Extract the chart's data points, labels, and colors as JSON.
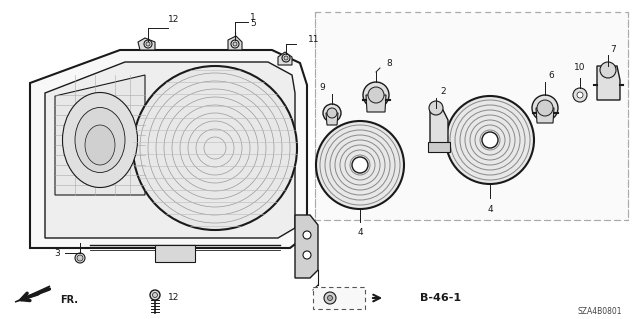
{
  "bg": "#ffffff",
  "lc": "#1a1a1a",
  "dc": "#888888",
  "diagram_code": "SZA4B0801"
}
